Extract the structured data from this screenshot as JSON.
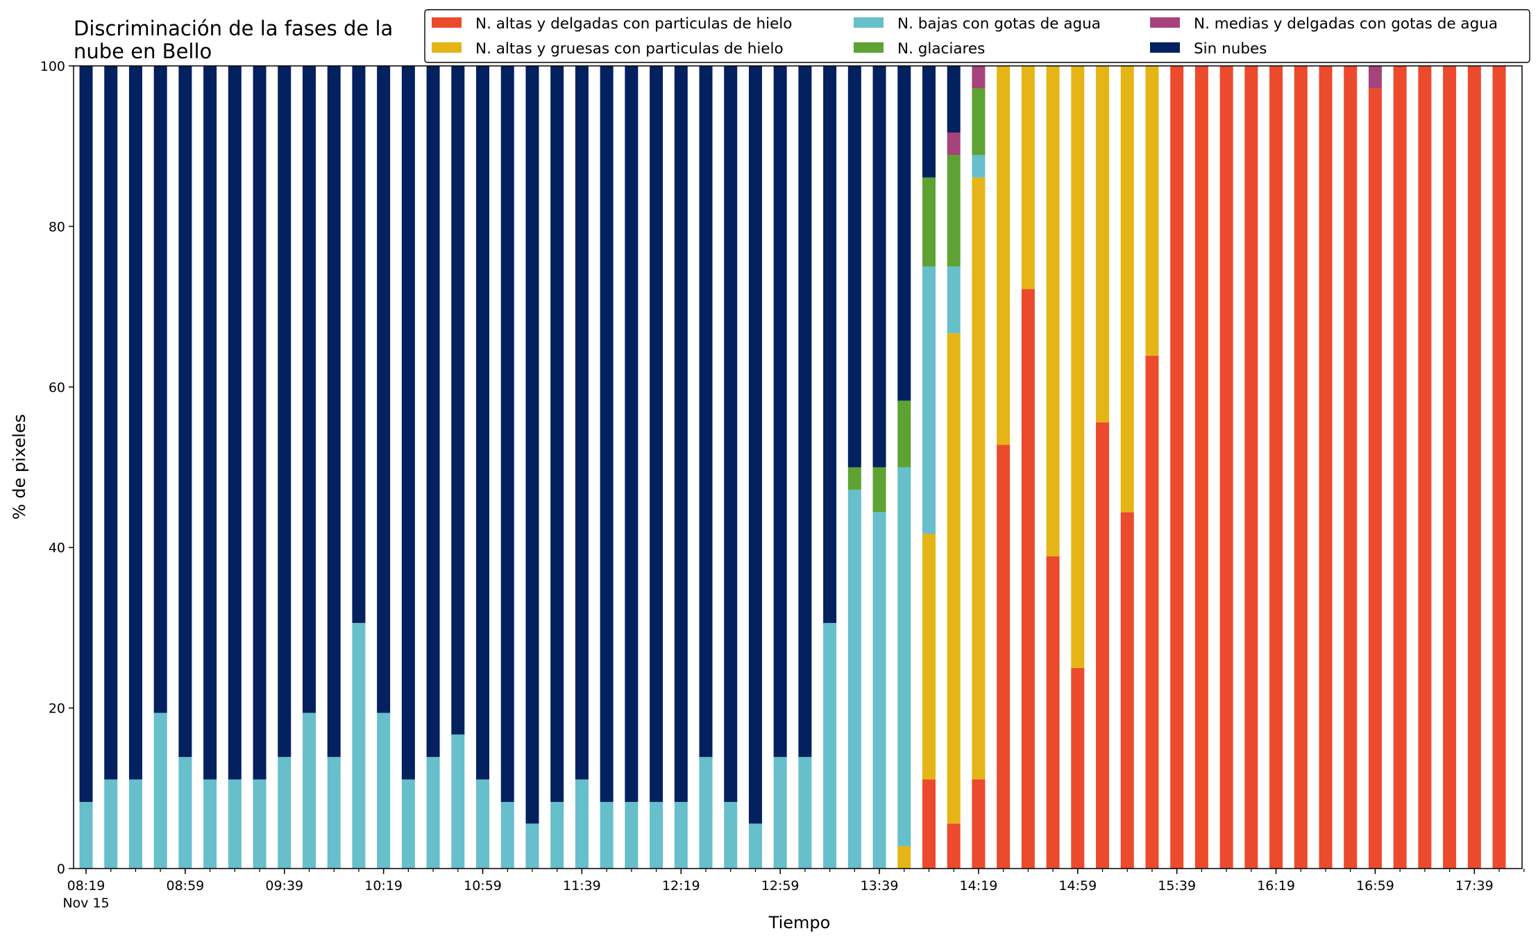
{
  "chart_data": {
    "type": "bar",
    "stacked": true,
    "title": "Discriminación de la fases de la nube en Bello",
    "title_lines": [
      "Discriminación de la fases de la",
      "nube en Bello"
    ],
    "xlabel": "Tiempo",
    "ylabel": "% de pixeles",
    "ylim": [
      0,
      100
    ],
    "yticks": [
      0,
      20,
      40,
      60,
      80,
      100
    ],
    "x_tick_labels": [
      "08:19",
      "08:59",
      "09:39",
      "10:19",
      "10:59",
      "11:39",
      "12:19",
      "12:59",
      "13:39",
      "14:19",
      "14:59",
      "15:39",
      "16:19",
      "16:59",
      "17:39"
    ],
    "x_date_label": "Nov 15",
    "grid": false,
    "legend_position": "top-right",
    "legend_columns": 3,
    "categories": [
      "08:19",
      "08:29",
      "08:39",
      "08:49",
      "08:59",
      "09:09",
      "09:19",
      "09:29",
      "09:39",
      "09:49",
      "09:59",
      "10:09",
      "10:19",
      "10:29",
      "10:39",
      "10:49",
      "10:59",
      "11:09",
      "11:19",
      "11:29",
      "11:39",
      "11:49",
      "11:59",
      "12:09",
      "12:19",
      "12:29",
      "12:39",
      "12:49",
      "12:59",
      "13:09",
      "13:19",
      "13:29",
      "13:39",
      "13:49",
      "13:59",
      "14:09",
      "14:19",
      "14:29",
      "14:39",
      "14:49",
      "14:59",
      "15:09",
      "15:19",
      "15:29",
      "15:39",
      "15:49",
      "15:59",
      "16:09",
      "16:19",
      "16:29",
      "16:39",
      "16:49",
      "16:59",
      "17:09",
      "17:19",
      "17:29",
      "17:39",
      "17:49"
    ],
    "series": [
      {
        "name": "N. altas y delgadas con particulas de hielo",
        "color": "#ec4a2c",
        "values": [
          0,
          0,
          0,
          0,
          0,
          0,
          0,
          0,
          0,
          0,
          0,
          0,
          0,
          0,
          0,
          0,
          0,
          0,
          0,
          0,
          0,
          0,
          0,
          0,
          0,
          0,
          0,
          0,
          0,
          0,
          0,
          0,
          0,
          0,
          11.1,
          5.6,
          11.1,
          52.8,
          72.2,
          38.9,
          25.0,
          55.6,
          44.4,
          63.9,
          100,
          100,
          100,
          100,
          100,
          100,
          100,
          100,
          97.2,
          100,
          100,
          100,
          100,
          100
        ]
      },
      {
        "name": "N. altas y gruesas con particulas de hielo",
        "color": "#e5b517",
        "values": [
          0,
          0,
          0,
          0,
          0,
          0,
          0,
          0,
          0,
          0,
          0,
          0,
          0,
          0,
          0,
          0,
          0,
          0,
          0,
          0,
          0,
          0,
          0,
          0,
          0,
          0,
          0,
          0,
          0,
          0,
          0,
          0,
          0,
          2.8,
          30.6,
          61.1,
          75.0,
          47.2,
          27.8,
          61.1,
          75.0,
          44.4,
          55.6,
          36.1,
          0,
          0,
          0,
          0,
          0,
          0,
          0,
          0,
          0,
          0,
          0,
          0,
          0,
          0
        ]
      },
      {
        "name": "N. bajas con gotas de agua",
        "color": "#66bfcb",
        "values": [
          8.3,
          11.1,
          11.1,
          19.4,
          13.9,
          11.1,
          11.1,
          11.1,
          13.9,
          19.4,
          13.9,
          30.6,
          19.4,
          11.1,
          13.9,
          16.7,
          11.1,
          8.3,
          5.6,
          8.3,
          11.1,
          8.3,
          8.3,
          8.3,
          8.3,
          13.9,
          8.3,
          5.6,
          13.9,
          13.9,
          30.6,
          47.2,
          44.4,
          47.2,
          33.3,
          8.3,
          2.8,
          0,
          0,
          0,
          0,
          0,
          0,
          0,
          0,
          0,
          0,
          0,
          0,
          0,
          0,
          0,
          0,
          0,
          0,
          0,
          0,
          0
        ]
      },
      {
        "name": "N. glaciares",
        "color": "#5da233",
        "values": [
          0,
          0,
          0,
          0,
          0,
          0,
          0,
          0,
          0,
          0,
          0,
          0,
          0,
          0,
          0,
          0,
          0,
          0,
          0,
          0,
          0,
          0,
          0,
          0,
          0,
          0,
          0,
          0,
          0,
          0,
          0,
          2.8,
          5.6,
          8.3,
          11.1,
          13.9,
          8.3,
          0,
          0,
          0,
          0,
          0,
          0,
          0,
          0,
          0,
          0,
          0,
          0,
          0,
          0,
          0,
          0,
          0,
          0,
          0,
          0,
          0
        ]
      },
      {
        "name": "N. medias y delgadas con gotas de agua",
        "color": "#a6437a",
        "values": [
          0,
          0,
          0,
          0,
          0,
          0,
          0,
          0,
          0,
          0,
          0,
          0,
          0,
          0,
          0,
          0,
          0,
          0,
          0,
          0,
          0,
          0,
          0,
          0,
          0,
          0,
          0,
          0,
          0,
          0,
          0,
          0,
          0,
          0,
          0,
          2.8,
          2.8,
          0,
          0,
          0,
          0,
          0,
          0,
          0,
          0,
          0,
          0,
          0,
          0,
          0,
          0,
          0,
          2.8,
          0,
          0,
          0,
          0,
          0
        ]
      },
      {
        "name": "Sin nubes",
        "color": "#03205f",
        "values": [
          91.7,
          88.9,
          88.9,
          80.6,
          86.1,
          88.9,
          88.9,
          88.9,
          86.1,
          80.6,
          86.1,
          69.4,
          80.6,
          88.9,
          86.1,
          83.3,
          88.9,
          91.7,
          94.4,
          91.7,
          88.9,
          91.7,
          91.7,
          91.7,
          91.7,
          86.1,
          91.7,
          94.4,
          86.1,
          86.1,
          69.4,
          50.0,
          50.0,
          41.7,
          13.9,
          8.3,
          0,
          0,
          0,
          0,
          0,
          0,
          0,
          0,
          0,
          0,
          0,
          0,
          0,
          0,
          0,
          0,
          0,
          0,
          0,
          0,
          0,
          0
        ]
      }
    ]
  }
}
